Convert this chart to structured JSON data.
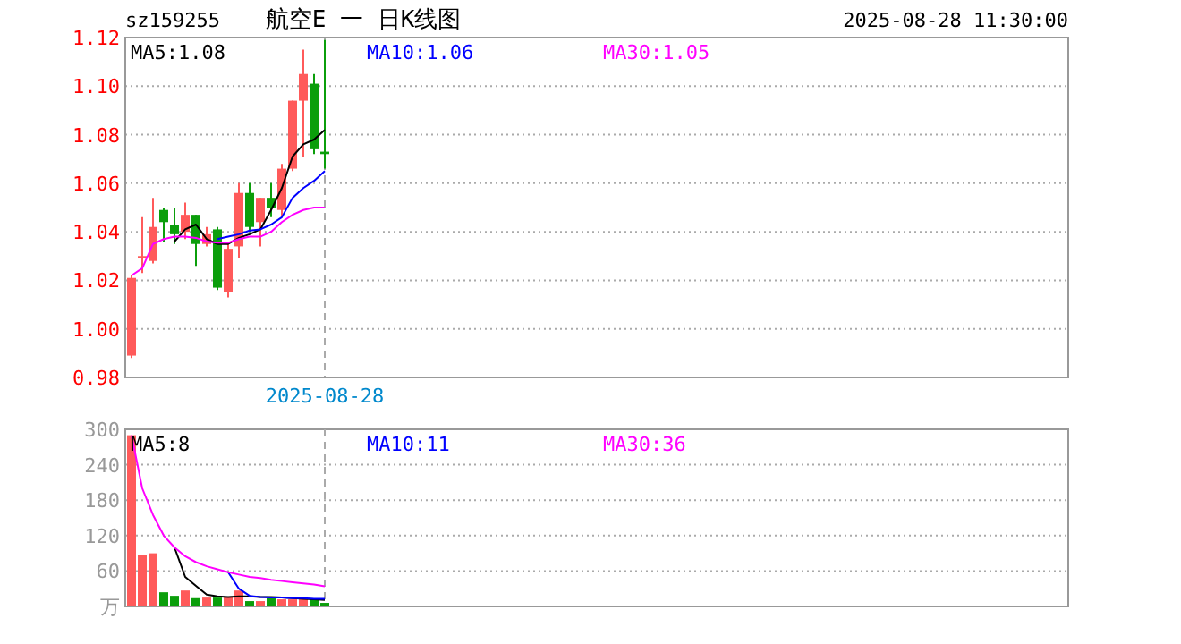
{
  "chart_data": [
    {
      "type": "candlestick",
      "title": "航空E 一 日K线图",
      "subtitle": "sz159255",
      "annotations": [
        "2025-08-28 11:30:00"
      ],
      "categories": [
        null,
        null,
        null,
        null,
        null,
        null,
        null,
        null,
        null,
        null,
        null,
        null,
        null,
        null,
        null,
        null,
        null,
        null,
        "2025-08-28"
      ],
      "ohlc": [
        [
          0.989,
          1.022,
          0.988,
          1.021
        ],
        [
          1.029,
          1.046,
          1.023,
          1.03
        ],
        [
          1.028,
          1.054,
          1.027,
          1.042
        ],
        [
          1.049,
          1.05,
          1.036,
          1.044
        ],
        [
          1.043,
          1.05,
          1.035,
          1.039
        ],
        [
          1.04,
          1.052,
          1.037,
          1.047
        ],
        [
          1.047,
          1.047,
          1.026,
          1.035
        ],
        [
          1.035,
          1.042,
          1.034,
          1.039
        ],
        [
          1.041,
          1.042,
          1.016,
          1.017
        ],
        [
          1.015,
          1.035,
          1.013,
          1.033
        ],
        [
          1.034,
          1.06,
          1.029,
          1.056
        ],
        [
          1.056,
          1.06,
          1.04,
          1.042
        ],
        [
          1.044,
          1.054,
          1.034,
          1.054
        ],
        [
          1.054,
          1.06,
          1.046,
          1.05
        ],
        [
          1.049,
          1.068,
          1.046,
          1.066
        ],
        [
          1.066,
          1.094,
          1.065,
          1.094
        ],
        [
          1.094,
          1.115,
          1.071,
          1.105
        ],
        [
          1.101,
          1.105,
          1.072,
          1.074
        ],
        [
          1.073,
          1.119,
          1.066,
          1.072
        ]
      ],
      "colors": [
        "#ff5a5a",
        "#ff5a5a",
        "#ff5a5a",
        "#0b9e0b",
        "#0b9e0b",
        "#ff5a5a",
        "#0b9e0b",
        "#ff5a5a",
        "#0b9e0b",
        "#ff5a5a",
        "#ff5a5a",
        "#0b9e0b",
        "#ff5a5a",
        "#0b9e0b",
        "#ff5a5a",
        "#ff5a5a",
        "#ff5a5a",
        "#0b9e0b",
        "#0b9e0b"
      ],
      "series": [
        {
          "type": "line",
          "name": "MA5:1.08",
          "color": "#000000",
          "values": [
            null,
            null,
            null,
            null,
            1.036,
            1.041,
            1.043,
            1.037,
            1.035,
            1.035,
            1.0375,
            1.039,
            1.041,
            1.049,
            1.058,
            1.071,
            1.076,
            1.078,
            1.082
          ]
        },
        {
          "type": "line",
          "name": "MA10:1.06",
          "color": "#0000ff",
          "values": [
            null,
            null,
            null,
            null,
            null,
            null,
            null,
            null,
            1.037,
            1.038,
            1.039,
            1.0405,
            1.041,
            1.043,
            1.046,
            1.054,
            1.058,
            1.061,
            1.065
          ]
        },
        {
          "type": "line",
          "name": "MA30:1.05",
          "color": "#ff00ff",
          "values": [
            1.022,
            1.025,
            1.035,
            1.037,
            1.038,
            1.038,
            1.0375,
            1.036,
            1.0355,
            1.0355,
            1.037,
            1.038,
            1.038,
            1.04,
            1.044,
            1.047,
            1.049,
            1.05,
            1.05
          ]
        }
      ],
      "ylim": [
        0.98,
        1.12
      ],
      "yticks": [
        {
          "value": 0.98,
          "label": "0.98"
        },
        {
          "value": 1.0,
          "label": "1.00"
        },
        {
          "value": 1.02,
          "label": "1.02"
        },
        {
          "value": 1.04,
          "label": "1.04"
        },
        {
          "value": 1.06,
          "label": "1.06"
        },
        {
          "value": 1.08,
          "label": "1.08"
        },
        {
          "value": 1.1,
          "label": "1.10"
        },
        {
          "value": 1.12,
          "label": "1.12"
        }
      ],
      "grid": "y",
      "legend": "top"
    },
    {
      "type": "bar",
      "categories": [
        null,
        null,
        null,
        null,
        null,
        null,
        null,
        null,
        null,
        null,
        null,
        null,
        null,
        null,
        null,
        null,
        null,
        null,
        null
      ],
      "series": [
        {
          "type": "bar",
          "colors": [
            "#ff5a5a",
            "#ff5a5a",
            "#ff5a5a",
            "#0b9e0b",
            "#0b9e0b",
            "#ff5a5a",
            "#0b9e0b",
            "#ff5a5a",
            "#0b9e0b",
            "#ff5a5a",
            "#ff5a5a",
            "#0b9e0b",
            "#ff5a5a",
            "#0b9e0b",
            "#ff5a5a",
            "#ff5a5a",
            "#ff5a5a",
            "#0b9e0b",
            "#0b9e0b"
          ],
          "values": [
            290,
            87,
            90,
            24,
            18,
            27,
            14,
            15,
            15,
            16,
            27,
            9,
            9,
            14,
            12,
            12,
            12,
            12,
            6
          ]
        },
        {
          "type": "line",
          "name": "MA5:8",
          "color": "#000000",
          "values": [
            null,
            null,
            null,
            null,
            100,
            50,
            35,
            20,
            17,
            16,
            17,
            17,
            16,
            16,
            15,
            14,
            13,
            12,
            11
          ]
        },
        {
          "type": "line",
          "name": "MA10:11",
          "color": "#0000ff",
          "values": [
            null,
            null,
            null,
            null,
            null,
            null,
            null,
            null,
            null,
            58,
            30,
            18,
            16,
            15,
            15,
            14,
            14,
            13,
            13
          ]
        },
        {
          "type": "line",
          "name": "MA30:36",
          "color": "#ff00ff",
          "values": [
            290,
            200,
            155,
            120,
            100,
            85,
            75,
            68,
            63,
            58,
            54,
            50,
            48,
            45,
            43,
            41,
            39,
            37,
            34
          ]
        }
      ],
      "ylim": [
        0,
        300
      ],
      "yticks": [
        {
          "value": 0,
          "label": "万"
        },
        60,
        120,
        180,
        240,
        300
      ],
      "grid": "y",
      "legend": "top"
    }
  ]
}
